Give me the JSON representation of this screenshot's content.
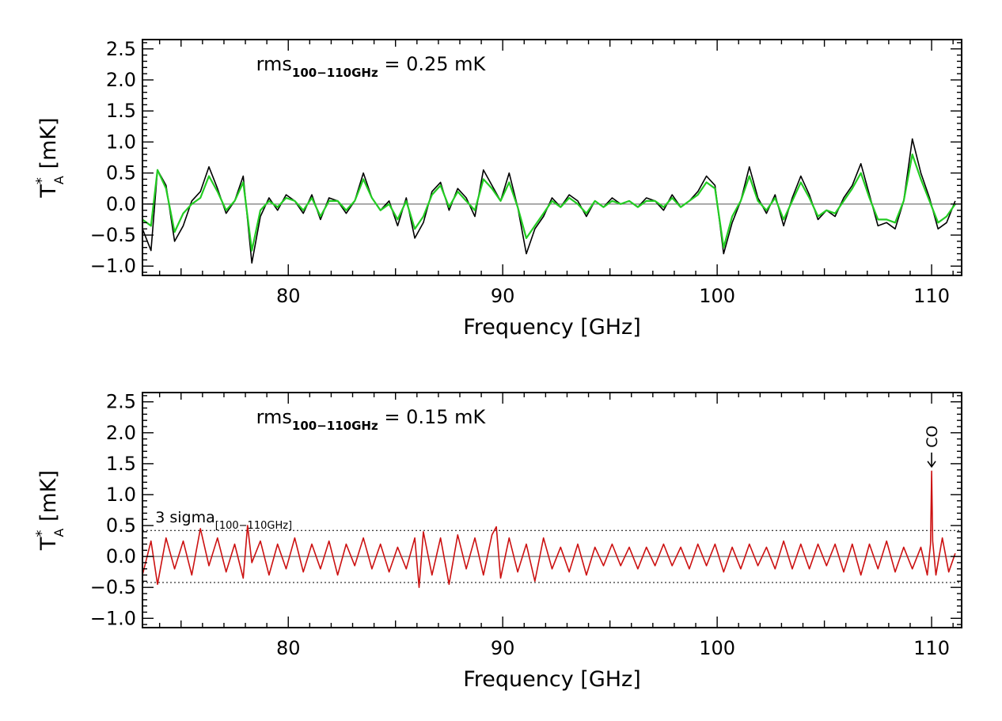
{
  "figure": {
    "colors": {
      "axis": "#000000",
      "smooth": "#22cc22",
      "residual": "#cc1111",
      "raw": "#000000"
    }
  },
  "chart_data": [
    {
      "type": "line",
      "xlabel": "Frequency [GHz]",
      "ylabel": {
        "main": "T",
        "sup": "*",
        "sub": "A",
        "unit": "[mK]"
      },
      "xlim": [
        73.2,
        111.4
      ],
      "ylim": [
        -1.15,
        2.65
      ],
      "xticks": [
        {
          "v": 80,
          "label": "80"
        },
        {
          "v": 90,
          "label": "90"
        },
        {
          "v": 100,
          "label": "100"
        },
        {
          "v": 110,
          "label": "110"
        }
      ],
      "yticks": [
        {
          "v": 2.5,
          "label": "2.5"
        },
        {
          "v": 2.0,
          "label": "2.0"
        },
        {
          "v": 1.5,
          "label": "1.5"
        },
        {
          "v": 1.0,
          "label": "1.0"
        },
        {
          "v": 0.5,
          "label": "0.5"
        },
        {
          "v": 0.0,
          "label": "0.0"
        },
        {
          "v": -0.5,
          "label": "−0.5"
        },
        {
          "v": -1.0,
          "label": "−1.0"
        }
      ],
      "annotation": {
        "base": "rms",
        "sub": "100−110GHz",
        "rest": " = 0.25 mK",
        "x": 78.5,
        "y": 2.15
      },
      "series": [
        {
          "style": "raw",
          "x": [
            73.2,
            73.6,
            73.9,
            74.3,
            74.7,
            75.1,
            75.5,
            75.9,
            76.3,
            76.7,
            77.1,
            77.5,
            77.9,
            78.3,
            78.7,
            79.1,
            79.5,
            79.9,
            80.3,
            80.7,
            81.1,
            81.5,
            81.9,
            82.3,
            82.7,
            83.1,
            83.5,
            83.9,
            84.3,
            84.7,
            85.1,
            85.5,
            85.9,
            86.3,
            86.7,
            87.1,
            87.5,
            87.9,
            88.3,
            88.7,
            89.1,
            89.5,
            89.9,
            90.3,
            90.7,
            91.1,
            91.5,
            91.9,
            92.3,
            92.7,
            93.1,
            93.5,
            93.9,
            94.3,
            94.7,
            95.1,
            95.5,
            95.9,
            96.3,
            96.7,
            97.1,
            97.5,
            97.9,
            98.3,
            98.7,
            99.1,
            99.5,
            99.9,
            100.3,
            100.7,
            101.1,
            101.5,
            101.9,
            102.3,
            102.7,
            103.1,
            103.5,
            103.9,
            104.3,
            104.7,
            105.1,
            105.5,
            105.9,
            106.3,
            106.7,
            107.1,
            107.5,
            107.9,
            108.3,
            108.7,
            109.1,
            109.5,
            109.9,
            110.3,
            110.7,
            111.1
          ],
          "y": [
            -0.4,
            -0.75,
            0.55,
            0.3,
            -0.6,
            -0.35,
            0.05,
            0.2,
            0.6,
            0.25,
            -0.15,
            0.05,
            0.45,
            -0.95,
            -0.2,
            0.1,
            -0.1,
            0.15,
            0.05,
            -0.15,
            0.15,
            -0.25,
            0.1,
            0.05,
            -0.15,
            0.05,
            0.5,
            0.1,
            -0.1,
            0.05,
            -0.35,
            0.1,
            -0.55,
            -0.3,
            0.2,
            0.35,
            -0.1,
            0.25,
            0.1,
            -0.2,
            0.55,
            0.3,
            0.05,
            0.5,
            -0.05,
            -0.8,
            -0.4,
            -0.2,
            0.1,
            -0.05,
            0.15,
            0.05,
            -0.2,
            0.05,
            -0.05,
            0.1,
            0.0,
            0.05,
            -0.05,
            0.1,
            0.05,
            -0.1,
            0.15,
            -0.05,
            0.05,
            0.2,
            0.45,
            0.3,
            -0.8,
            -0.3,
            0.05,
            0.6,
            0.1,
            -0.15,
            0.15,
            -0.35,
            0.1,
            0.45,
            0.15,
            -0.25,
            -0.1,
            -0.2,
            0.1,
            0.3,
            0.65,
            0.15,
            -0.35,
            -0.3,
            -0.4,
            0.05,
            1.05,
            0.5,
            0.1,
            -0.4,
            -0.3,
            0.05
          ]
        },
        {
          "style": "smooth",
          "x": [
            73.2,
            73.6,
            73.9,
            74.3,
            74.7,
            75.1,
            75.5,
            75.9,
            76.3,
            76.7,
            77.1,
            77.5,
            77.9,
            78.3,
            78.7,
            79.1,
            79.5,
            79.9,
            80.3,
            80.7,
            81.1,
            81.5,
            81.9,
            82.3,
            82.7,
            83.1,
            83.5,
            83.9,
            84.3,
            84.7,
            85.1,
            85.5,
            85.9,
            86.3,
            86.7,
            87.1,
            87.5,
            87.9,
            88.3,
            88.7,
            89.1,
            89.5,
            89.9,
            90.3,
            90.7,
            91.1,
            91.5,
            91.9,
            92.3,
            92.7,
            93.1,
            93.5,
            93.9,
            94.3,
            94.7,
            95.1,
            95.5,
            95.9,
            96.3,
            96.7,
            97.1,
            97.5,
            97.9,
            98.3,
            98.7,
            99.1,
            99.5,
            99.9,
            100.3,
            100.7,
            101.1,
            101.5,
            101.9,
            102.3,
            102.7,
            103.1,
            103.5,
            103.9,
            104.3,
            104.7,
            105.1,
            105.5,
            105.9,
            106.3,
            106.7,
            107.1,
            107.5,
            107.9,
            108.3,
            108.7,
            109.1,
            109.5,
            109.9,
            110.3,
            110.7,
            111.1
          ],
          "y": [
            -0.25,
            -0.35,
            0.55,
            0.25,
            -0.45,
            -0.15,
            0.0,
            0.1,
            0.45,
            0.2,
            -0.1,
            0.05,
            0.35,
            -0.75,
            -0.1,
            0.05,
            -0.05,
            0.1,
            0.05,
            -0.1,
            0.1,
            -0.2,
            0.05,
            0.05,
            -0.1,
            0.05,
            0.4,
            0.1,
            -0.1,
            0.0,
            -0.25,
            0.05,
            -0.4,
            -0.2,
            0.15,
            0.3,
            -0.05,
            0.2,
            0.05,
            -0.1,
            0.4,
            0.25,
            0.05,
            0.35,
            -0.05,
            -0.55,
            -0.35,
            -0.15,
            0.05,
            -0.05,
            0.1,
            0.0,
            -0.15,
            0.05,
            -0.05,
            0.05,
            0.0,
            0.05,
            -0.05,
            0.05,
            0.05,
            -0.05,
            0.1,
            -0.05,
            0.05,
            0.15,
            0.35,
            0.25,
            -0.7,
            -0.2,
            0.05,
            0.45,
            0.05,
            -0.1,
            0.1,
            -0.25,
            0.05,
            0.35,
            0.1,
            -0.2,
            -0.1,
            -0.15,
            0.05,
            0.25,
            0.5,
            0.1,
            -0.25,
            -0.25,
            -0.3,
            0.05,
            0.8,
            0.4,
            0.05,
            -0.3,
            -0.2,
            0.0
          ]
        }
      ]
    },
    {
      "type": "line",
      "xlabel": "Frequency [GHz]",
      "ylabel": {
        "main": "T",
        "sup": "*",
        "sub": "A",
        "unit": "[mK]"
      },
      "xlim": [
        73.2,
        111.4
      ],
      "ylim": [
        -1.15,
        2.65
      ],
      "xticks": [
        {
          "v": 80,
          "label": "80"
        },
        {
          "v": 90,
          "label": "90"
        },
        {
          "v": 100,
          "label": "100"
        },
        {
          "v": 110,
          "label": "110"
        }
      ],
      "yticks": [
        {
          "v": 2.5,
          "label": "2.5"
        },
        {
          "v": 2.0,
          "label": "2.0"
        },
        {
          "v": 1.5,
          "label": "1.5"
        },
        {
          "v": 1.0,
          "label": "1.0"
        },
        {
          "v": 0.5,
          "label": "0.5"
        },
        {
          "v": 0.0,
          "label": "0.0"
        },
        {
          "v": -0.5,
          "label": "−0.5"
        },
        {
          "v": -1.0,
          "label": "−1.0"
        }
      ],
      "annotation": {
        "base": "rms",
        "sub": "100−110GHz",
        "rest": " = 0.15 mK",
        "x": 78.5,
        "y": 2.15
      },
      "sigma_label": {
        "base": "3 sigma",
        "sub": "[100−110GHz]",
        "x": 73.8,
        "y": 0.55
      },
      "hlines": [
        0.42,
        -0.42
      ],
      "co_label": {
        "text": "CO",
        "x": 110.0,
        "y": 1.45
      },
      "series": [
        {
          "style": "residual",
          "x": [
            73.2,
            73.6,
            73.9,
            74.3,
            74.7,
            75.1,
            75.5,
            75.9,
            76.3,
            76.7,
            77.1,
            77.5,
            77.9,
            78.1,
            78.3,
            78.7,
            79.1,
            79.5,
            79.9,
            80.3,
            80.7,
            81.1,
            81.5,
            81.9,
            82.3,
            82.7,
            83.1,
            83.5,
            83.9,
            84.3,
            84.7,
            85.1,
            85.5,
            85.9,
            86.1,
            86.3,
            86.7,
            87.1,
            87.5,
            87.9,
            88.3,
            88.7,
            89.1,
            89.5,
            89.7,
            89.9,
            90.3,
            90.7,
            91.1,
            91.5,
            91.9,
            92.3,
            92.7,
            93.1,
            93.5,
            93.9,
            94.3,
            94.7,
            95.1,
            95.5,
            95.9,
            96.3,
            96.7,
            97.1,
            97.5,
            97.9,
            98.3,
            98.7,
            99.1,
            99.5,
            99.9,
            100.3,
            100.7,
            101.1,
            101.5,
            101.9,
            102.3,
            102.7,
            103.1,
            103.5,
            103.9,
            104.3,
            104.7,
            105.1,
            105.5,
            105.9,
            106.3,
            106.7,
            107.1,
            107.5,
            107.9,
            108.3,
            108.7,
            109.1,
            109.5,
            109.8,
            109.95,
            110.0,
            110.05,
            110.2,
            110.5,
            110.8,
            111.1
          ],
          "y": [
            -0.3,
            0.25,
            -0.45,
            0.3,
            -0.2,
            0.25,
            -0.3,
            0.45,
            -0.15,
            0.3,
            -0.25,
            0.2,
            -0.35,
            0.5,
            -0.1,
            0.25,
            -0.3,
            0.2,
            -0.2,
            0.3,
            -0.25,
            0.2,
            -0.2,
            0.25,
            -0.3,
            0.2,
            -0.15,
            0.3,
            -0.2,
            0.2,
            -0.25,
            0.15,
            -0.2,
            0.3,
            -0.5,
            0.4,
            -0.3,
            0.3,
            -0.45,
            0.35,
            -0.2,
            0.3,
            -0.3,
            0.35,
            0.48,
            -0.35,
            0.3,
            -0.25,
            0.2,
            -0.4,
            0.3,
            -0.2,
            0.15,
            -0.25,
            0.2,
            -0.3,
            0.15,
            -0.15,
            0.2,
            -0.15,
            0.15,
            -0.2,
            0.15,
            -0.15,
            0.2,
            -0.15,
            0.15,
            -0.2,
            0.2,
            -0.15,
            0.2,
            -0.25,
            0.15,
            -0.2,
            0.2,
            -0.15,
            0.15,
            -0.2,
            0.25,
            -0.2,
            0.2,
            -0.2,
            0.2,
            -0.15,
            0.2,
            -0.25,
            0.2,
            -0.3,
            0.2,
            -0.2,
            0.25,
            -0.25,
            0.15,
            -0.2,
            0.15,
            -0.3,
            0.2,
            1.38,
            0.25,
            -0.3,
            0.3,
            -0.25,
            0.05
          ]
        }
      ]
    }
  ]
}
